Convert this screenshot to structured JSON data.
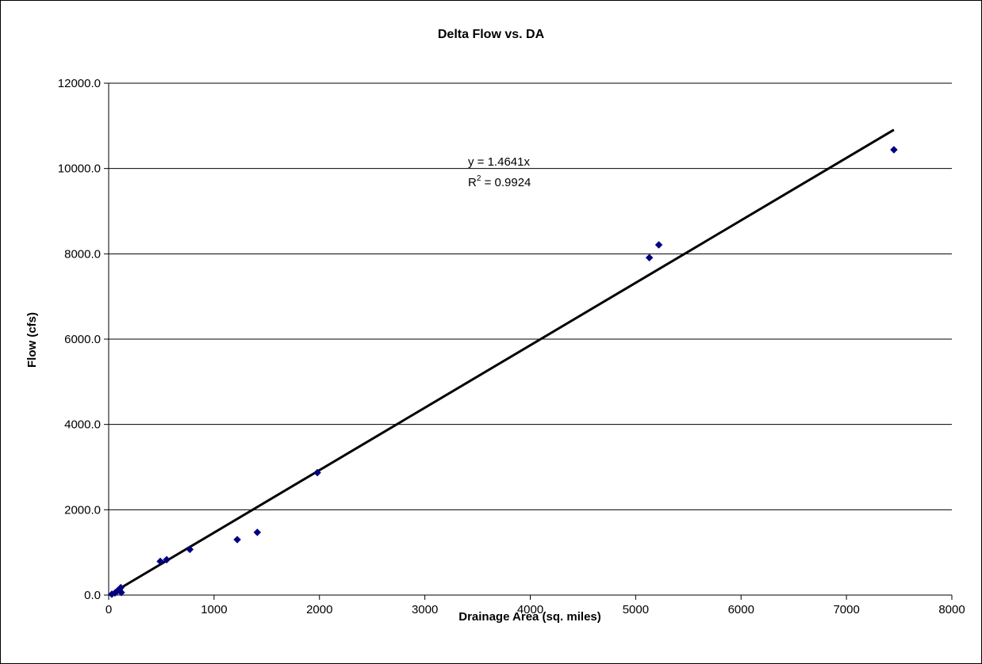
{
  "chart_data": {
    "type": "scatter",
    "title": "Delta Flow vs. DA",
    "xlabel": "Drainage Area (sq. miles)",
    "ylabel": "Flow (cfs)",
    "xlim": [
      0,
      8000
    ],
    "ylim": [
      0,
      12000
    ],
    "x_ticks": [
      "0",
      "1000",
      "2000",
      "3000",
      "4000",
      "5000",
      "6000",
      "7000",
      "8000"
    ],
    "y_ticks": [
      "0.0",
      "2000.0",
      "4000.0",
      "6000.0",
      "8000.0",
      "10000.0",
      "12000.0"
    ],
    "grid": "horizontal",
    "legend": "none",
    "marker_color": "#000080",
    "series": [
      {
        "points": [
          {
            "x": 30,
            "y": 20
          },
          {
            "x": 60,
            "y": 50
          },
          {
            "x": 80,
            "y": 90
          },
          {
            "x": 100,
            "y": 130
          },
          {
            "x": 115,
            "y": 175
          },
          {
            "x": 120,
            "y": 60
          },
          {
            "x": 490,
            "y": 790
          },
          {
            "x": 550,
            "y": 830
          },
          {
            "x": 770,
            "y": 1070
          },
          {
            "x": 1220,
            "y": 1300
          },
          {
            "x": 1410,
            "y": 1470
          },
          {
            "x": 1980,
            "y": 2870
          },
          {
            "x": 5130,
            "y": 7910
          },
          {
            "x": 5220,
            "y": 8210
          },
          {
            "x": 7450,
            "y": 10440
          }
        ]
      }
    ],
    "trendline": {
      "slope": 1.4641,
      "x_range": [
        0,
        7450
      ],
      "color": "#000000",
      "equation_label": "y = 1.4641x",
      "r2_prefix": "R",
      "r2_superscript": "2",
      "r2_value": " = 0.9924"
    }
  }
}
